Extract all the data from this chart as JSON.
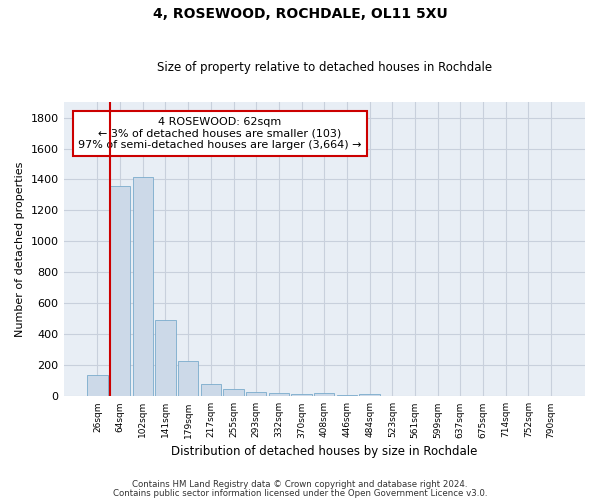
{
  "title": "4, ROSEWOOD, ROCHDALE, OL11 5XU",
  "subtitle": "Size of property relative to detached houses in Rochdale",
  "xlabel": "Distribution of detached houses by size in Rochdale",
  "ylabel": "Number of detached properties",
  "bar_color": "#ccd9e8",
  "bar_edge_color": "#7aabcc",
  "grid_color": "#c8d0dc",
  "background_color": "#e8eef5",
  "annotation_line1": "4 ROSEWOOD: 62sqm",
  "annotation_line2": "← 3% of detached houses are smaller (103)",
  "annotation_line3": "97% of semi-detached houses are larger (3,664) →",
  "ylim": [
    0,
    1900
  ],
  "yticks": [
    0,
    200,
    400,
    600,
    800,
    1000,
    1200,
    1400,
    1600,
    1800
  ],
  "categories": [
    "26sqm",
    "64sqm",
    "102sqm",
    "141sqm",
    "179sqm",
    "217sqm",
    "255sqm",
    "293sqm",
    "332sqm",
    "370sqm",
    "408sqm",
    "446sqm",
    "484sqm",
    "523sqm",
    "561sqm",
    "599sqm",
    "637sqm",
    "675sqm",
    "714sqm",
    "752sqm",
    "790sqm"
  ],
  "values": [
    140,
    1355,
    1415,
    490,
    230,
    80,
    48,
    30,
    20,
    15,
    20,
    10,
    15,
    0,
    0,
    0,
    0,
    0,
    0,
    0,
    0
  ],
  "footer_line1": "Contains HM Land Registry data © Crown copyright and database right 2024.",
  "footer_line2": "Contains public sector information licensed under the Open Government Licence v3.0."
}
